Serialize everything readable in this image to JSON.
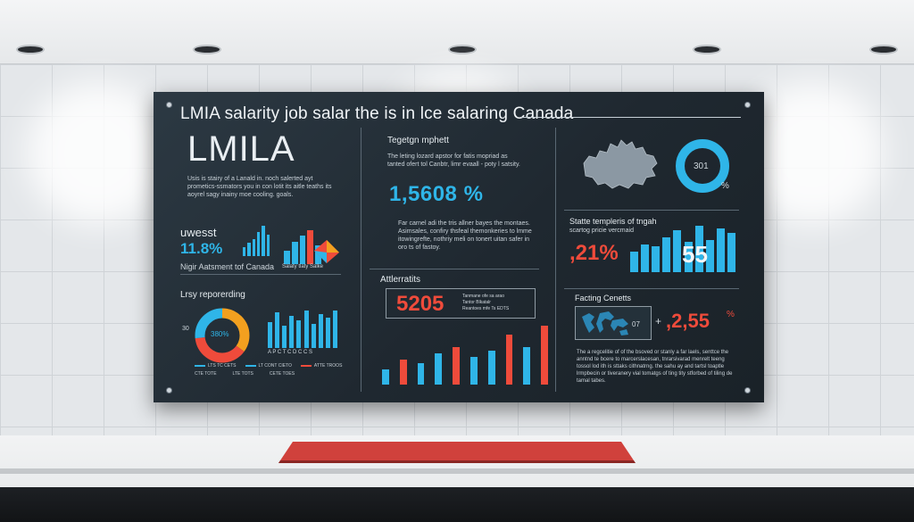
{
  "panel": {
    "title": "LMIA salarity job salar the is in lce salaring Canada",
    "brand": "LMILA",
    "intro_text": "Usis is stairy of a Lanald in. noch salerted ayt prometics-ssmators you in con lotit its aitle teaths its aoyrel sagy inainy moe cooling. goals.",
    "left_stat": {
      "heading": "uwesst",
      "value": "11.8%",
      "caption": "Nigir Aatsment tof Canada",
      "mini_caption": "Salaty tlaty Salke"
    },
    "left_donut": {
      "heading": "Lrsy reporerding",
      "center": "380%",
      "side_value": "30",
      "legend": [
        "LTS TC CETS",
        "LT CONT CIETO",
        "ATTE TROOS"
      ],
      "legend_row2": [
        "CTE TOTE",
        "LTE TOTS",
        "CETE TOES"
      ],
      "bar_axis": "A P C T C D C C S"
    },
    "mid_top": {
      "heading": "Tegetgn mphett",
      "text": "The leting lozard apstor for fatis mopriad as tanted ofert tol Canbtr, limr evaall - poty l satsity.",
      "value": "1,5608 %",
      "text2": "Far carnel adi the tris allner bayes the montaes. Asimsales, confiry thsfeal themonkeries to lmme itowingrefte, nothriy meli on tonert uitan safer in oro ts of fastoy."
    },
    "mid_bottom": {
      "heading": "Attlerratits",
      "value": "5205",
      "lines": [
        "Tanmane ofe sa arao",
        "Tantor Blkatalr",
        "Reantoes mfe Ts EDTS"
      ]
    },
    "right_top": {
      "donut_value": "301",
      "pct_label": "%",
      "heading": "Statte templeris of tngah",
      "subheading": "scartog pricie vercmaid",
      "red_value": "21%",
      "white_value": "55"
    },
    "right_bottom": {
      "heading": "Facting Cenetts",
      "map_value": "07",
      "plus": "+",
      "red_value": "2,55",
      "pct": "%",
      "text": "The a regcelitie of of the bsoved or stanly a far laels, senttce the anntnd te bcere to marcerslacesan, tnrarsivarad menrelt teeng tossol lod ith is sttaks cithnatrng. the sahu ay and tartsl toaptle lrmpbecin or tiveranery vial tomatgs of ting tity stforbed of tiling de tamal tabes."
    },
    "charts": {
      "left_small_bars": [
        30,
        45,
        55,
        80,
        100,
        70
      ],
      "left_cluster_bars": [
        40,
        65,
        85,
        100,
        55
      ],
      "left_bottom_bars": [
        70,
        95,
        60,
        85,
        75,
        100,
        65,
        90,
        80,
        100
      ],
      "mid_bottom_bars": [
        25,
        40,
        35,
        50,
        60,
        45,
        55,
        80,
        60,
        95
      ],
      "right_bars": [
        45,
        60,
        55,
        75,
        90,
        65,
        100,
        70,
        95,
        85
      ]
    },
    "colors": {
      "blue": "#2fb5e8",
      "red": "#ef4b3b",
      "orange": "#f3a01f",
      "panel": "#1f2830"
    }
  }
}
